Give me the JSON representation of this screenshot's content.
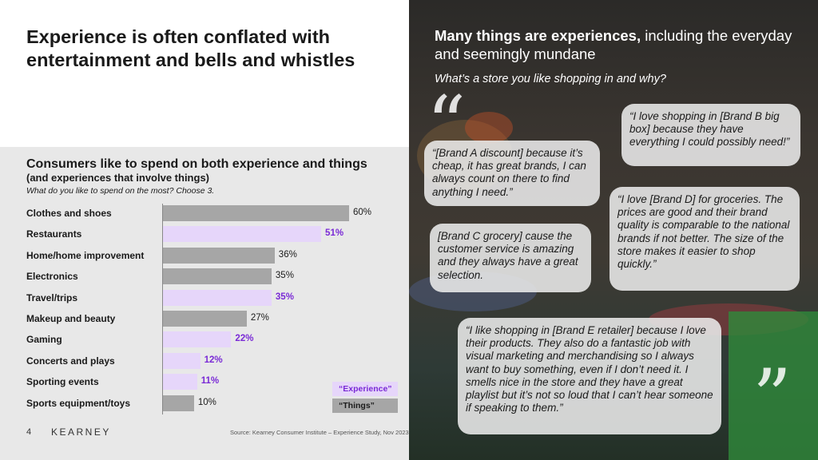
{
  "slide": {
    "title": "Experience is often conflated with entertainment and bells and whistles",
    "page_number": "4",
    "brand": "KEARNEY",
    "source": "Source: Kearney Consumer Institute – Experience Study, Nov 2023"
  },
  "chart_panel": {
    "title": "Consumers like to spend on both experience and things",
    "subtitle": "(and experiences that involve things)",
    "question": "What do you like to spend on the most? Choose 3.",
    "legend_experience": "“Experience”",
    "legend_things": "“Things”"
  },
  "chart_data": {
    "type": "bar",
    "orientation": "horizontal",
    "categories": [
      "Clothes and shoes",
      "Restaurants",
      "Home/home improvement",
      "Electronics",
      "Travel/trips",
      "Makeup and beauty",
      "Gaming",
      "Concerts and plays",
      "Sporting events",
      "Sports equipment/toys"
    ],
    "values": [
      60,
      51,
      36,
      35,
      35,
      27,
      22,
      12,
      11,
      10
    ],
    "value_labels": [
      "60%",
      "51%",
      "36%",
      "35%",
      "35%",
      "27%",
      "22%",
      "12%",
      "11%",
      "10%"
    ],
    "group": [
      "Things",
      "Experience",
      "Things",
      "Things",
      "Experience",
      "Things",
      "Experience",
      "Experience",
      "Experience",
      "Things"
    ],
    "xlim": [
      0,
      100
    ],
    "colors": {
      "Experience": "#e6d6fa",
      "Things": "#a6a6a6",
      "experience_text": "#7a2ad6"
    }
  },
  "right": {
    "heading_bold": "Many things are experiences,",
    "heading_rest": " including the everyday and seemingly mundane",
    "question": "What’s a store you like shopping in and why?",
    "quotes": [
      "“[Brand A discount] because it’s cheap, it has great brands, I can always count on there to find anything I need.”",
      "“I love shopping in [Brand B big box] because they have everything I could possibly need!”",
      "[Brand C grocery] cause the customer service is amazing and they always have a great selection.",
      "“I love [Brand D] for groceries. The prices are good and their brand quality is comparable to the national brands if not better. The size of the store makes it easier to shop quickly.”",
      "“I like shopping in [Brand E retailer] because I love their products. They also do a fantastic job with visual marketing and merchandising so I always want to buy something, even if I don’t need it. I smells nice in the store and they have a great playlist but it’s not so loud that I can’t hear someone if speaking to them.”"
    ]
  }
}
